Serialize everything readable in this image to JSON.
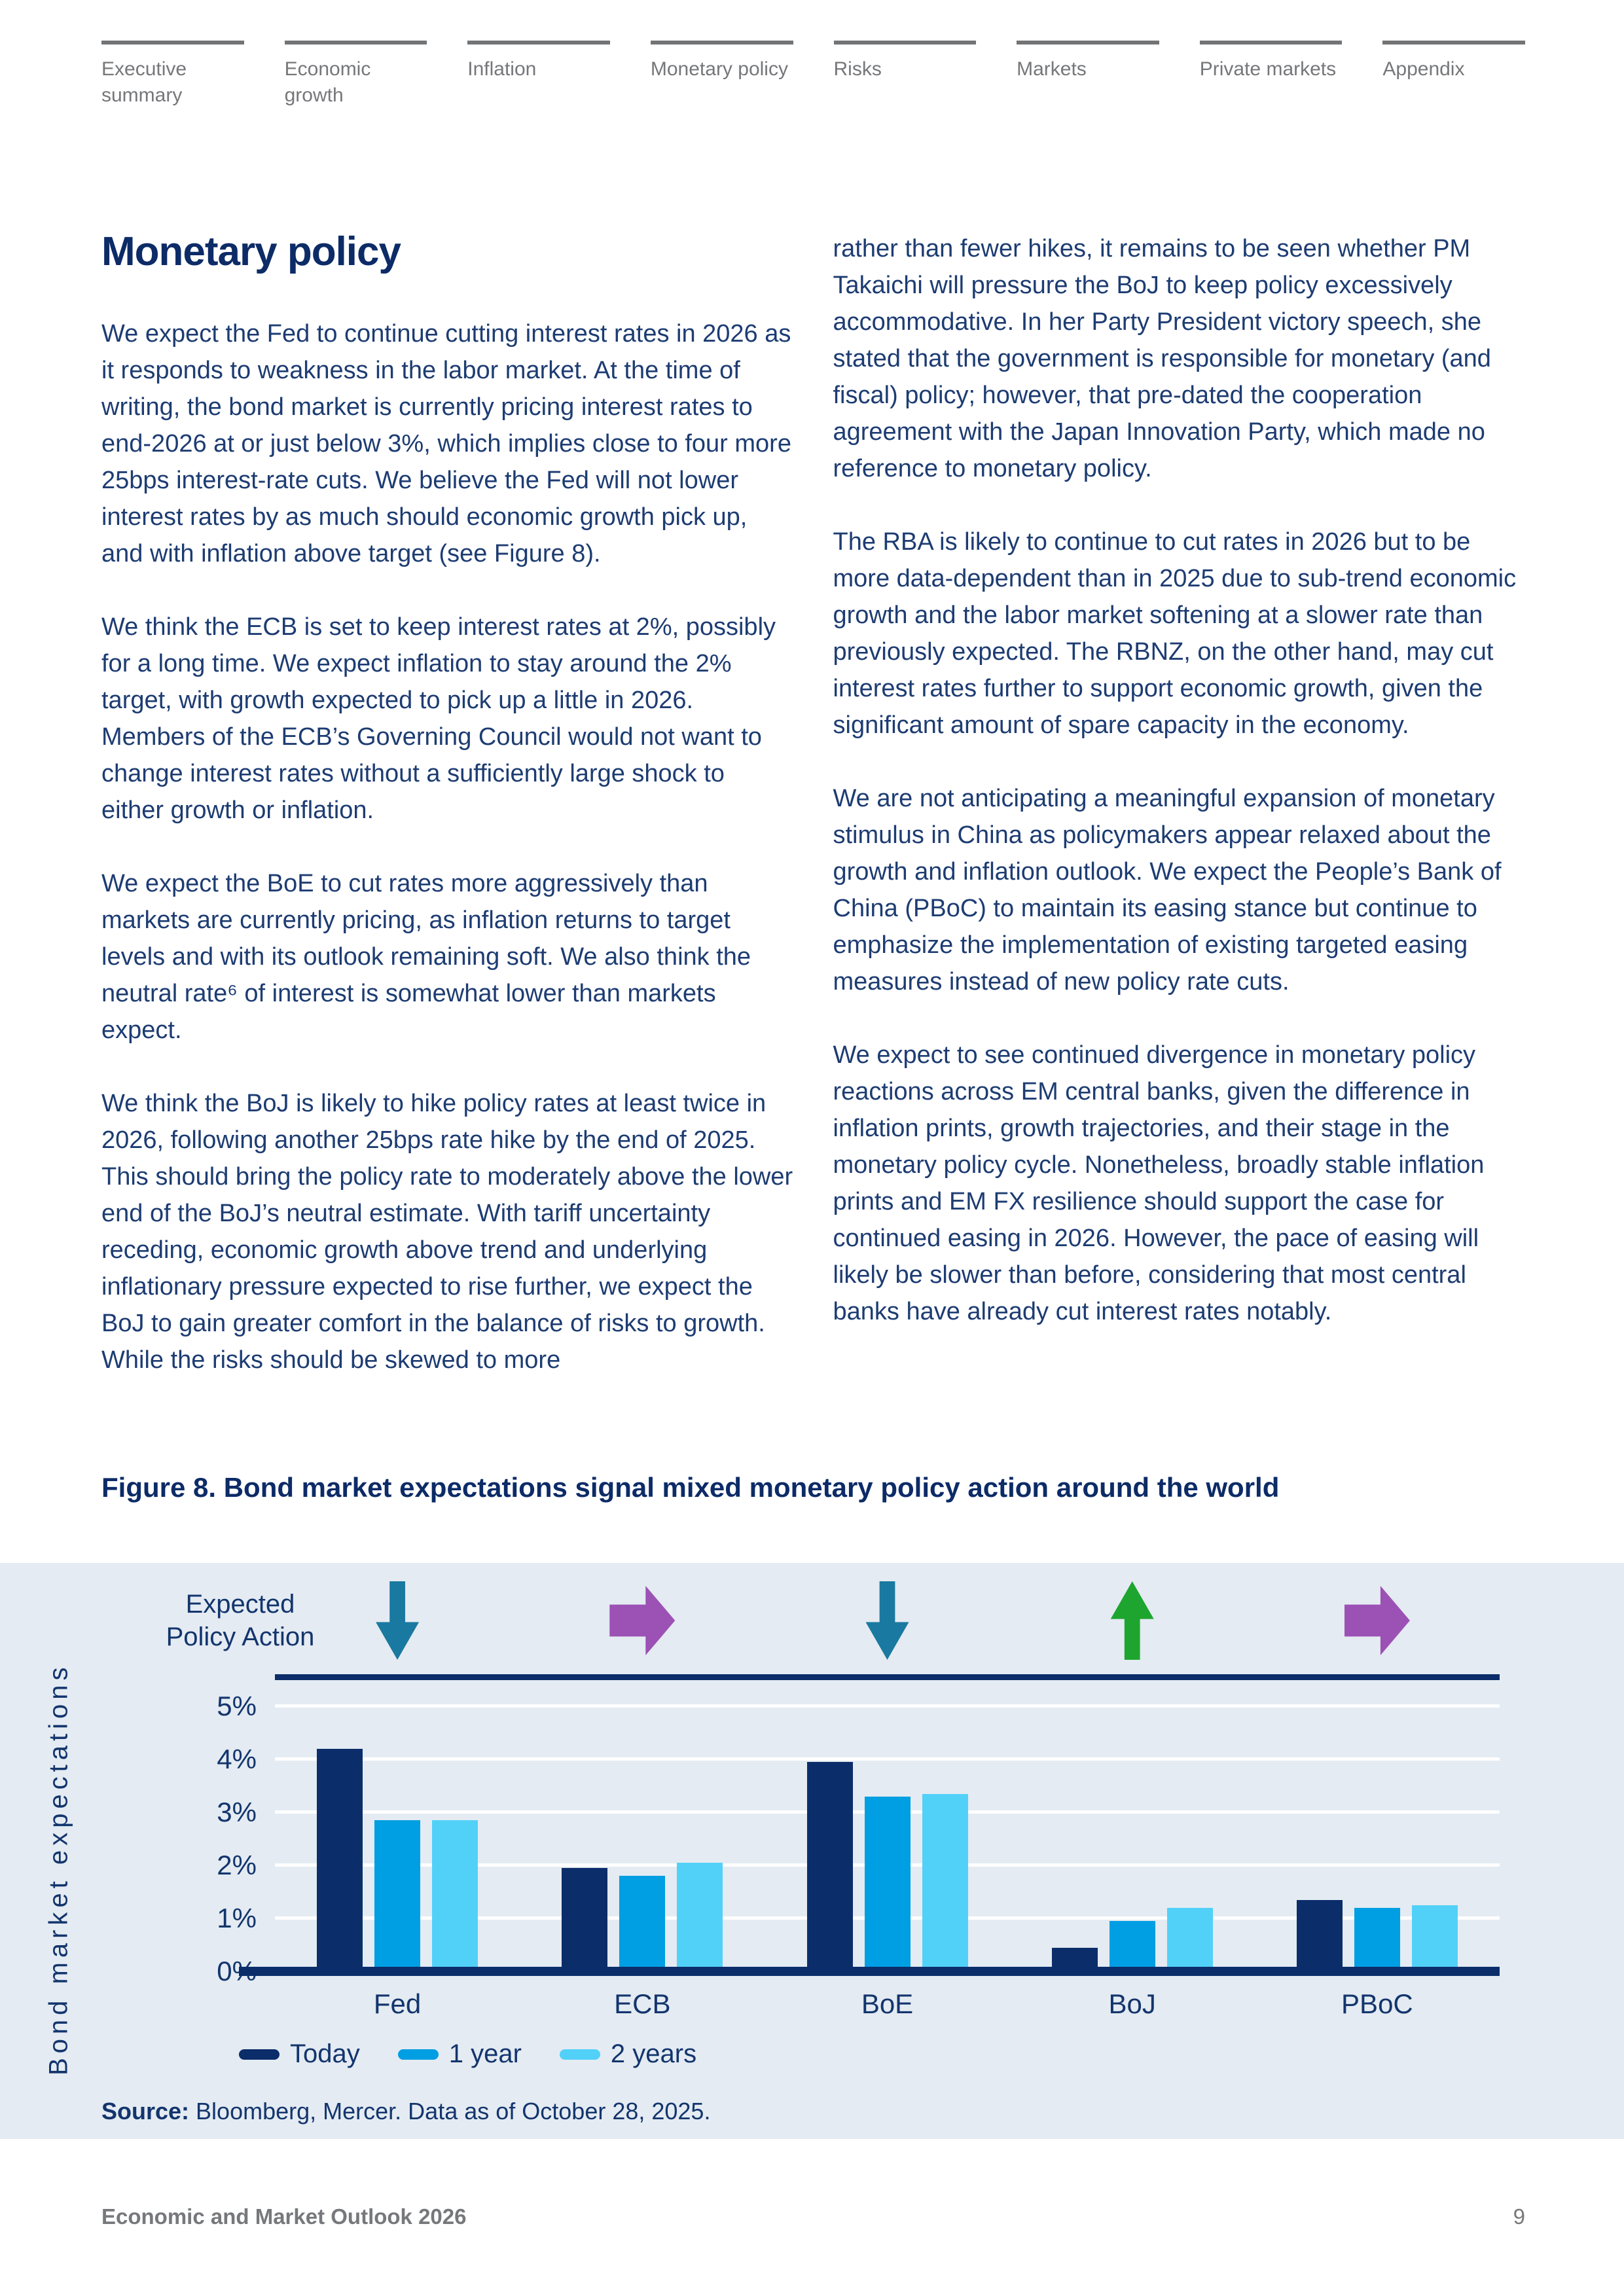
{
  "nav": {
    "items": [
      "Executive summary",
      "Economic growth",
      "Inflation",
      "Monetary policy",
      "Risks",
      "Markets",
      "Private markets",
      "Appendix"
    ]
  },
  "page": {
    "title": "Monetary policy",
    "footer_left": "Economic and Market Outlook 2026",
    "page_number": "9"
  },
  "article": {
    "left_paragraphs": [
      "We expect the Fed to continue cutting interest rates in 2026 as it responds to weakness in the labor market. At the time of writing, the bond market is currently pricing interest rates to end-2026 at or just below 3%, which implies close to four more 25bps interest-rate cuts. We believe the Fed will not lower interest rates by as much should economic growth pick up, and with inflation above target (see Figure 8).",
      "We think the ECB is set to keep interest rates at 2%, possibly for a long time. We expect inflation to stay around the 2% target, with growth expected to pick up a little in 2026. Members of the ECB’s Governing Council would not want to change interest rates without a sufficiently large shock to either growth or inflation.",
      "We expect the BoE to cut rates more aggressively than markets are currently pricing, as inflation returns to target levels and with its outlook remaining soft. We also think the neutral rate⁶ of interest is somewhat lower than markets expect.",
      "We think the BoJ is likely to hike policy rates at least twice in 2026, following another 25bps rate hike by the end of 2025. This should bring the policy rate to moderately above the lower end of the BoJ’s neutral estimate. With tariff uncertainty receding, economic growth above trend and underlying inflationary pressure expected to rise further, we expect the BoJ to gain greater comfort in the balance of risks to growth. While the risks should be skewed to more"
    ],
    "right_paragraphs": [
      "rather than fewer hikes, it remains to be seen whether PM Takaichi will pressure the BoJ to keep policy excessively accommodative. In her Party President victory speech, she stated that the government is responsible for monetary (and fiscal) policy; however, that pre-dated the cooperation agreement with the Japan Innovation Party, which made no reference to monetary policy.",
      "The RBA is likely to continue to cut rates in 2026 but to be more data-dependent than in 2025 due to sub-trend economic growth and the labor market softening at a slower rate than previously expected. The RBNZ, on the other hand, may cut interest rates further to support economic growth, given the significant amount of spare capacity in the economy.",
      "We are not anticipating a meaningful expansion of monetary stimulus in China as policymakers appear relaxed about the growth and inflation outlook. We expect the People’s Bank of China (PBoC) to maintain its easing stance but continue to emphasize the implementation of existing targeted easing measures instead of new policy rate cuts.",
      "We expect to see continued divergence in monetary policy reactions across EM central banks, given the difference in inflation prints, growth trajectories, and their stage in the monetary policy cycle. Nonetheless, broadly stable inflation prints and EM FX resilience should support the case for continued easing in 2026. However, the pace of easing will likely be slower than before, considering that most central banks have already cut interest rates notably."
    ]
  },
  "figure": {
    "title": "Figure 8. Bond market expectations signal mixed monetary policy action around the world",
    "source_label": "Source:",
    "source_text": " Bloomberg, Mercer. Data as of October 28, 2025."
  },
  "chart_data": {
    "type": "bar",
    "title": "Figure 8. Bond market expectations signal mixed monetary policy action around the world",
    "xlabel": "",
    "ylabel": "Bond market expectations",
    "header_label": "Expected Policy Action",
    "categories": [
      "Fed",
      "ECB",
      "BoE",
      "BoJ",
      "PBoC"
    ],
    "series": [
      {
        "name": "Today",
        "color": "#0b2d6a",
        "values": [
          4.2,
          1.95,
          3.95,
          0.45,
          1.35
        ]
      },
      {
        "name": "1 year",
        "color": "#009ee2",
        "values": [
          2.85,
          1.8,
          3.3,
          0.95,
          1.2
        ]
      },
      {
        "name": "2 years",
        "color": "#52d1f8",
        "values": [
          2.85,
          2.05,
          3.35,
          1.2,
          1.25
        ]
      }
    ],
    "expected_policy_action": [
      {
        "bank": "Fed",
        "direction": "down",
        "color": "#1a79a0"
      },
      {
        "bank": "ECB",
        "direction": "right",
        "color": "#9c51b5"
      },
      {
        "bank": "BoE",
        "direction": "down",
        "color": "#1a79a0"
      },
      {
        "bank": "BoJ",
        "direction": "up",
        "color": "#1ea52f"
      },
      {
        "bank": "PBoC",
        "direction": "right",
        "color": "#9c51b5"
      }
    ],
    "yticks": [
      "5%",
      "4%",
      "3%",
      "2%",
      "1%",
      "0%"
    ],
    "ylim": [
      0,
      5
    ],
    "grid": true,
    "gridline_color": "#ffffff",
    "panel_background": "#e4ebf2",
    "legend_position": "bottom"
  }
}
